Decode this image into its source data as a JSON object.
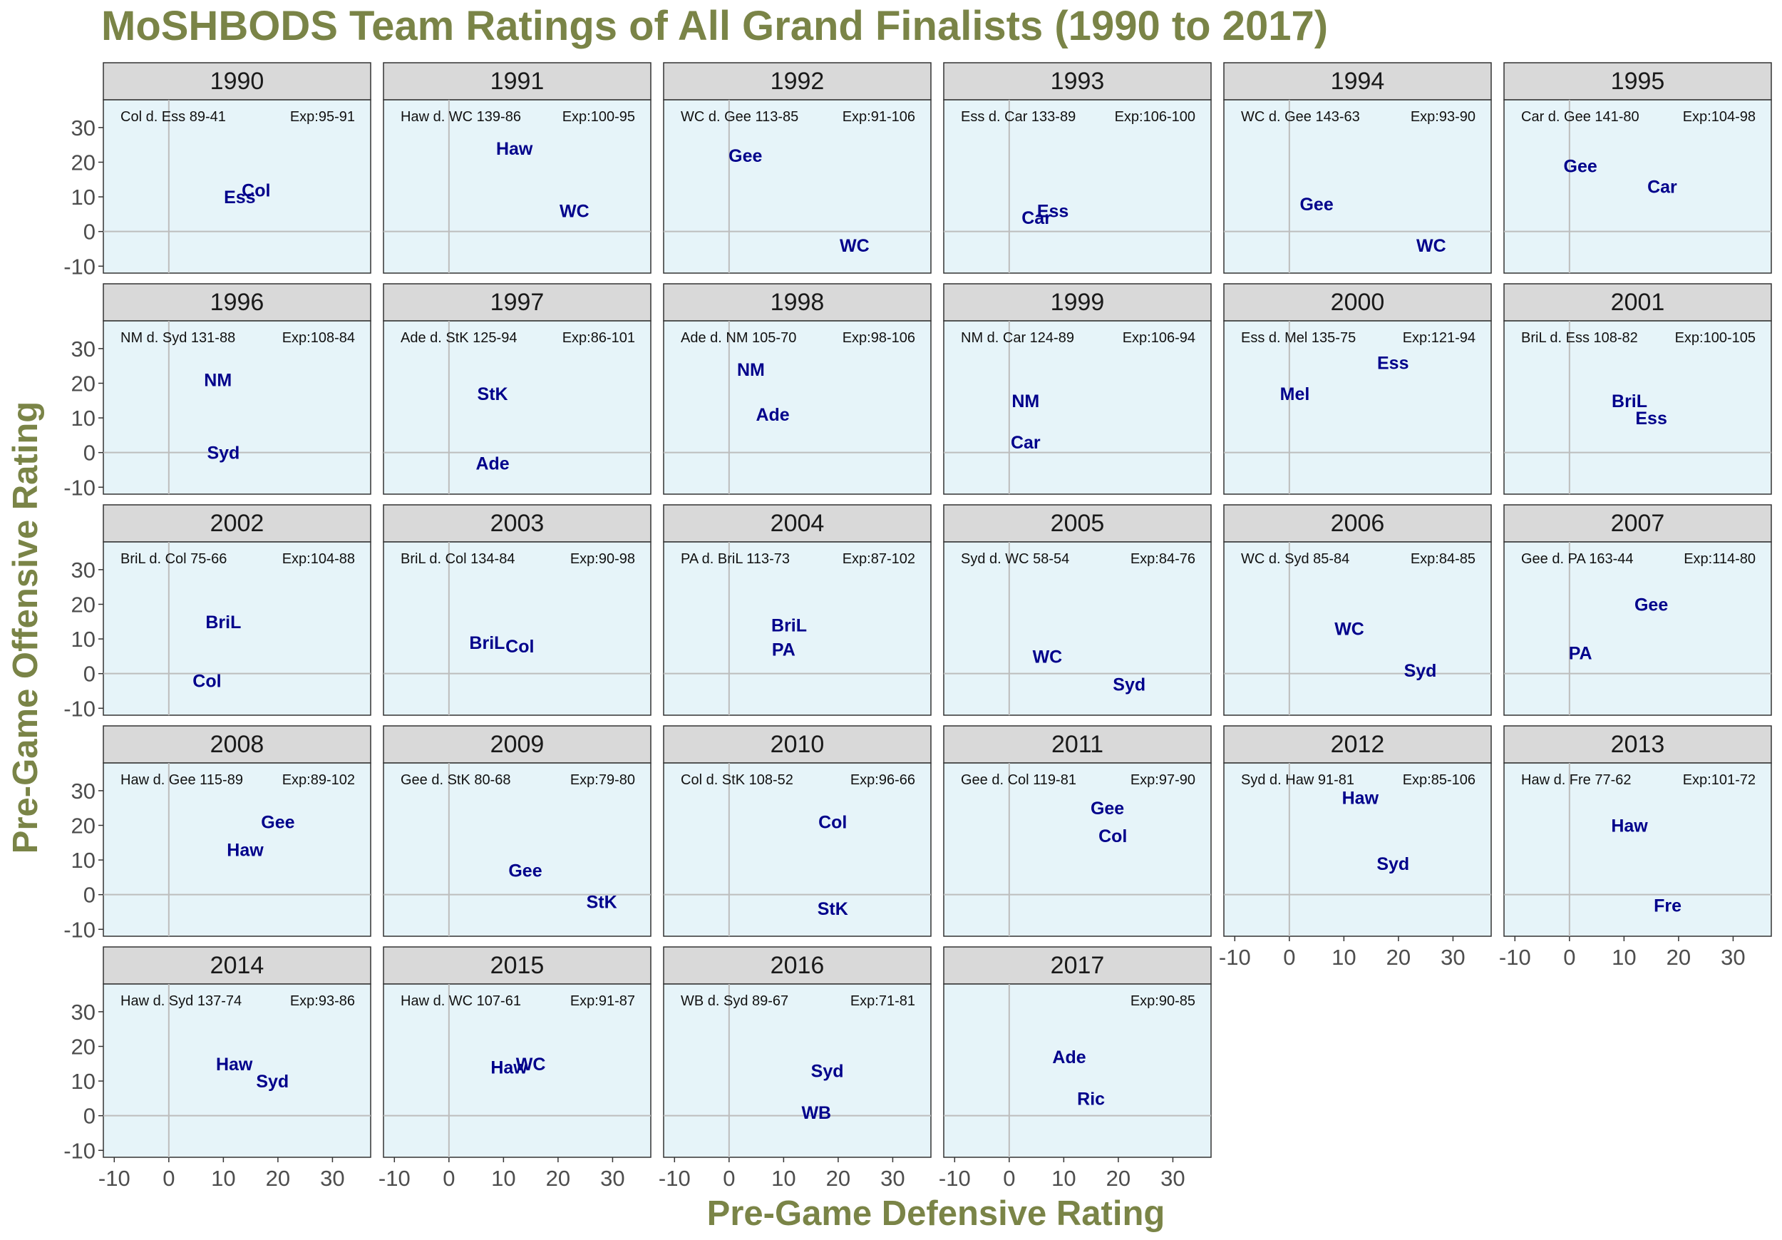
{
  "chart_data": {
    "type": "scatter",
    "title": "MoSHBODS Team Ratings of All Grand Finalists (1990 to 2017)",
    "xlabel": "Pre-Game Defensive Rating",
    "ylabel": "Pre-Game Offensive Rating",
    "xlim": [
      -12,
      37
    ],
    "ylim": [
      -12,
      38
    ],
    "x_ticks": [
      -10,
      0,
      10,
      20,
      30
    ],
    "y_ticks": [
      -10,
      0,
      10,
      20,
      30
    ],
    "grid": "zero-lines only",
    "colors": {
      "title": "#7a8447",
      "axis_title": "#7a8447",
      "panel_bg": "#e6f4f9",
      "strip_bg": "#d9d9d9",
      "points": "#00008b",
      "zero_line": "#bdbdbd",
      "tick_text": "#4d4d4d"
    },
    "facets": [
      {
        "year": "1990",
        "result": "Col d. Ess 89-41",
        "expected": "Exp:95-91",
        "teams": [
          {
            "name": "Col",
            "x": 16,
            "y": 12
          },
          {
            "name": "Ess",
            "x": 13,
            "y": 10
          }
        ]
      },
      {
        "year": "1991",
        "result": "Haw d. WC 139-86",
        "expected": "Exp:100-95",
        "teams": [
          {
            "name": "Haw",
            "x": 12,
            "y": 24
          },
          {
            "name": "WC",
            "x": 23,
            "y": 6
          }
        ]
      },
      {
        "year": "1992",
        "result": "WC d. Gee 113-85",
        "expected": "Exp:91-106",
        "teams": [
          {
            "name": "Gee",
            "x": 3,
            "y": 22
          },
          {
            "name": "WC",
            "x": 23,
            "y": -4
          }
        ]
      },
      {
        "year": "1993",
        "result": "Ess d. Car 133-89",
        "expected": "Exp:106-100",
        "teams": [
          {
            "name": "Ess",
            "x": 8,
            "y": 6
          },
          {
            "name": "Car",
            "x": 5,
            "y": 4
          }
        ]
      },
      {
        "year": "1994",
        "result": "WC d. Gee 143-63",
        "expected": "Exp:93-90",
        "teams": [
          {
            "name": "Gee",
            "x": 5,
            "y": 8
          },
          {
            "name": "WC",
            "x": 26,
            "y": -4
          }
        ]
      },
      {
        "year": "1995",
        "result": "Car d. Gee 141-80",
        "expected": "Exp:104-98",
        "teams": [
          {
            "name": "Gee",
            "x": 2,
            "y": 19
          },
          {
            "name": "Car",
            "x": 17,
            "y": 13
          }
        ]
      },
      {
        "year": "1996",
        "result": "NM d. Syd 131-88",
        "expected": "Exp:108-84",
        "teams": [
          {
            "name": "NM",
            "x": 9,
            "y": 21
          },
          {
            "name": "Syd",
            "x": 10,
            "y": 0
          }
        ]
      },
      {
        "year": "1997",
        "result": "Ade d. StK 125-94",
        "expected": "Exp:86-101",
        "teams": [
          {
            "name": "StK",
            "x": 8,
            "y": 17
          },
          {
            "name": "Ade",
            "x": 8,
            "y": -3
          }
        ]
      },
      {
        "year": "1998",
        "result": "Ade d. NM 105-70",
        "expected": "Exp:98-106",
        "teams": [
          {
            "name": "NM",
            "x": 4,
            "y": 24
          },
          {
            "name": "Ade",
            "x": 8,
            "y": 11
          }
        ]
      },
      {
        "year": "1999",
        "result": "NM d. Car 124-89",
        "expected": "Exp:106-94",
        "teams": [
          {
            "name": "NM",
            "x": 3,
            "y": 15
          },
          {
            "name": "Car",
            "x": 3,
            "y": 3
          }
        ]
      },
      {
        "year": "2000",
        "result": "Ess d. Mel 135-75",
        "expected": "Exp:121-94",
        "teams": [
          {
            "name": "Ess",
            "x": 19,
            "y": 26
          },
          {
            "name": "Mel",
            "x": 1,
            "y": 17
          }
        ]
      },
      {
        "year": "2001",
        "result": "BriL d. Ess 108-82",
        "expected": "Exp:100-105",
        "teams": [
          {
            "name": "BriL",
            "x": 11,
            "y": 15
          },
          {
            "name": "Ess",
            "x": 15,
            "y": 10
          }
        ]
      },
      {
        "year": "2002",
        "result": "BriL d. Col 75-66",
        "expected": "Exp:104-88",
        "teams": [
          {
            "name": "BriL",
            "x": 10,
            "y": 15
          },
          {
            "name": "Col",
            "x": 7,
            "y": -2
          }
        ]
      },
      {
        "year": "2003",
        "result": "BriL d. Col 134-84",
        "expected": "Exp:90-98",
        "teams": [
          {
            "name": "BriL",
            "x": 7,
            "y": 9
          },
          {
            "name": "Col",
            "x": 13,
            "y": 8
          }
        ]
      },
      {
        "year": "2004",
        "result": "PA d. BriL 113-73",
        "expected": "Exp:87-102",
        "teams": [
          {
            "name": "BriL",
            "x": 11,
            "y": 14
          },
          {
            "name": "PA",
            "x": 10,
            "y": 7
          }
        ]
      },
      {
        "year": "2005",
        "result": "Syd d. WC 58-54",
        "expected": "Exp:84-76",
        "teams": [
          {
            "name": "WC",
            "x": 7,
            "y": 5
          },
          {
            "name": "Syd",
            "x": 22,
            "y": -3
          }
        ]
      },
      {
        "year": "2006",
        "result": "WC d. Syd 85-84",
        "expected": "Exp:84-85",
        "teams": [
          {
            "name": "WC",
            "x": 11,
            "y": 13
          },
          {
            "name": "Syd",
            "x": 24,
            "y": 1
          }
        ]
      },
      {
        "year": "2007",
        "result": "Gee d. PA 163-44",
        "expected": "Exp:114-80",
        "teams": [
          {
            "name": "Gee",
            "x": 15,
            "y": 20
          },
          {
            "name": "PA",
            "x": 2,
            "y": 6
          }
        ]
      },
      {
        "year": "2008",
        "result": "Haw d. Gee 115-89",
        "expected": "Exp:89-102",
        "teams": [
          {
            "name": "Gee",
            "x": 20,
            "y": 21
          },
          {
            "name": "Haw",
            "x": 14,
            "y": 13
          }
        ]
      },
      {
        "year": "2009",
        "result": "Gee d. StK 80-68",
        "expected": "Exp:79-80",
        "teams": [
          {
            "name": "Gee",
            "x": 14,
            "y": 7
          },
          {
            "name": "StK",
            "x": 28,
            "y": -2
          }
        ]
      },
      {
        "year": "2010",
        "result": "Col d. StK 108-52",
        "expected": "Exp:96-66",
        "teams": [
          {
            "name": "Col",
            "x": 19,
            "y": 21
          },
          {
            "name": "StK",
            "x": 19,
            "y": -4
          }
        ]
      },
      {
        "year": "2011",
        "result": "Gee d. Col 119-81",
        "expected": "Exp:97-90",
        "teams": [
          {
            "name": "Gee",
            "x": 18,
            "y": 25
          },
          {
            "name": "Col",
            "x": 19,
            "y": 17
          }
        ]
      },
      {
        "year": "2012",
        "result": "Syd d. Haw 91-81",
        "expected": "Exp:85-106",
        "teams": [
          {
            "name": "Haw",
            "x": 13,
            "y": 28
          },
          {
            "name": "Syd",
            "x": 19,
            "y": 9
          }
        ]
      },
      {
        "year": "2013",
        "result": "Haw d. Fre 77-62",
        "expected": "Exp:101-72",
        "teams": [
          {
            "name": "Haw",
            "x": 11,
            "y": 20
          },
          {
            "name": "Fre",
            "x": 18,
            "y": -3
          }
        ]
      },
      {
        "year": "2014",
        "result": "Haw d. Syd 137-74",
        "expected": "Exp:93-86",
        "teams": [
          {
            "name": "Haw",
            "x": 12,
            "y": 15
          },
          {
            "name": "Syd",
            "x": 19,
            "y": 10
          }
        ]
      },
      {
        "year": "2015",
        "result": "Haw d. WC 107-61",
        "expected": "Exp:91-87",
        "teams": [
          {
            "name": "Haw",
            "x": 11,
            "y": 14
          },
          {
            "name": "WC",
            "x": 15,
            "y": 15
          }
        ]
      },
      {
        "year": "2016",
        "result": "WB d. Syd 89-67",
        "expected": "Exp:71-81",
        "teams": [
          {
            "name": "Syd",
            "x": 18,
            "y": 13
          },
          {
            "name": "WB",
            "x": 16,
            "y": 1
          }
        ]
      },
      {
        "year": "2017",
        "result": "",
        "expected": "Exp:90-85",
        "teams": [
          {
            "name": "Ade",
            "x": 11,
            "y": 17
          },
          {
            "name": "Ric",
            "x": 15,
            "y": 5
          }
        ]
      }
    ]
  }
}
